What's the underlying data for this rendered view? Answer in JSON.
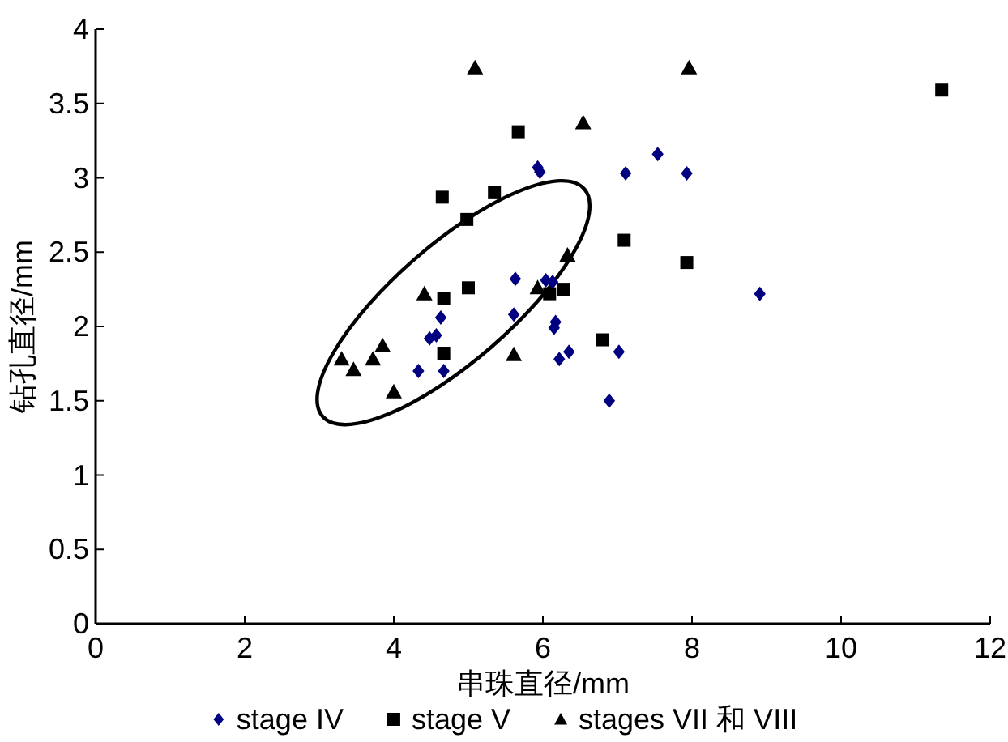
{
  "chart_data": {
    "type": "scatter",
    "xlabel": "串珠直径/mm",
    "ylabel": "钻孔直径/mm",
    "xlim": [
      0,
      12
    ],
    "xticks": [
      0,
      2,
      4,
      6,
      8,
      10,
      12
    ],
    "ylim": [
      0,
      4
    ],
    "yticks": [
      0,
      0.5,
      1,
      1.5,
      2,
      2.5,
      3,
      3.5,
      4
    ],
    "grid": false,
    "legend": "bottom",
    "series": [
      {
        "name": "stage IV",
        "color": "#000080",
        "marker": "diamond",
        "x": [
          4.33,
          4.63,
          4.48,
          4.57,
          4.67,
          5.63,
          5.61,
          5.93,
          5.96,
          6.04,
          6.13,
          6.17,
          6.15,
          6.35,
          6.22,
          6.89,
          7.02,
          7.11,
          7.54,
          7.93,
          8.91
        ],
        "values": [
          1.7,
          2.06,
          1.92,
          1.94,
          1.7,
          2.32,
          2.08,
          3.07,
          3.04,
          2.31,
          2.3,
          2.03,
          1.99,
          1.83,
          1.78,
          1.5,
          1.83,
          3.03,
          3.16,
          3.03,
          2.22
        ]
      },
      {
        "name": "stage V",
        "color": "#000000",
        "marker": "square",
        "x": [
          4.65,
          5.35,
          4.98,
          5.67,
          4.67,
          5.0,
          4.67,
          6.09,
          6.28,
          6.8,
          7.09,
          7.93,
          11.35
        ],
        "values": [
          2.87,
          2.9,
          2.72,
          3.31,
          2.19,
          2.26,
          1.82,
          2.22,
          2.25,
          1.91,
          2.58,
          2.43,
          3.59
        ]
      },
      {
        "name": "stages VII 和 VIII",
        "color": "#000000",
        "marker": "triangle",
        "x": [
          5.09,
          7.96,
          6.54,
          6.33,
          5.93,
          5.61,
          4.41,
          3.85,
          3.72,
          3.3,
          3.46,
          4.0
        ],
        "values": [
          3.74,
          3.74,
          3.37,
          2.48,
          2.26,
          1.81,
          2.22,
          1.87,
          1.78,
          1.78,
          1.71,
          1.56
        ]
      }
    ]
  }
}
